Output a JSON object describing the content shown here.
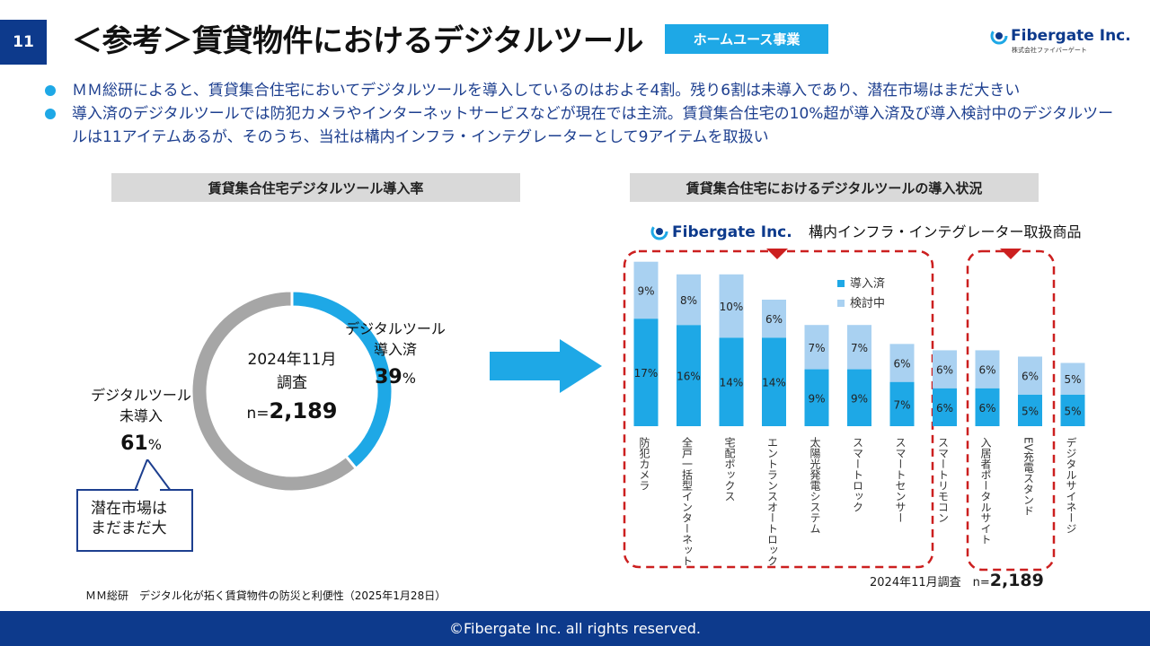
{
  "page_number": "11",
  "title": "＜参考＞賃貸物件におけるデジタルツール",
  "badge": "ホームユース事業",
  "logo": {
    "name": "Fibergate Inc.",
    "sub": "株式会社ファイバーゲート"
  },
  "bullets": [
    "ＭＭ総研によると、賃貸集合住宅においてデジタルツールを導入しているのはおよそ4割。残り6割は未導入であり、潜在市場はまだ大きい",
    "導入済のデジタルツールでは防犯カメラやインターネットサービスなどが現在では主流。賃貸集合住宅の10%超が導入済及び導入検討中のデジタルツールは11アイテムあるが、そのうち、当社は構内インフラ・インテグレーターとして9アイテムを取扱い"
  ],
  "section_left": "賃貸集合住宅デジタルツール導入率",
  "section_right": "賃貸集合住宅におけるデジタルツールの導入状況",
  "callout": [
    "潜在市場は",
    "まだまだ大"
  ],
  "source": "ＭＭ総研　デジタル化が拓く賃貸物件の防災と利便性（2025年1月28日）",
  "survey_right": {
    "text": "2024年11月調査　n=",
    "n": "2,189"
  },
  "footer": "©Fibergate Inc. all rights reserved.",
  "colors": {
    "navy": "#0d3a8c",
    "accent": "#1ea8e6",
    "introduced": "#1ea8e6",
    "considering": "#a9d1f1",
    "not_introduced": "#a6a6a6",
    "dash": "#cc1f1f"
  },
  "chart_data": [
    {
      "type": "pie",
      "subtype": "donut",
      "center": {
        "line1": "2024年11月",
        "line2": "調査",
        "n_prefix": "n=",
        "n_value": "2,189"
      },
      "slices": [
        {
          "label_lines": [
            "デジタルツール",
            "導入済"
          ],
          "value": 39,
          "value_text": "39",
          "unit": "%",
          "color": "#1ea8e6"
        },
        {
          "label_lines": [
            "デジタルツール",
            "未導入"
          ],
          "value": 61,
          "value_text": "61",
          "unit": "%",
          "color": "#a6a6a6"
        }
      ]
    },
    {
      "type": "bar",
      "stacked": true,
      "banner": "構内インフラ・インテグレーター取扱商品",
      "legend_position": "top-right",
      "ylim": [
        0,
        30
      ],
      "categories": [
        "防犯カメラ",
        "全戸一括型インターネット",
        "宅配ボックス",
        "エントランスオートロック",
        "太陽光発電システム",
        "スマートロック",
        "スマートセンサー",
        "スマートリモコン",
        "入居者ポータルサイト",
        "EV充電スタンド",
        "デジタルサイネージ"
      ],
      "series": [
        {
          "name": "導入済",
          "values": [
            17,
            16,
            14,
            14,
            9,
            9,
            7,
            6,
            6,
            5,
            5
          ],
          "labels": [
            "17%",
            "16%",
            "14%",
            "14%",
            "9%",
            "9%",
            "7%",
            "6%",
            "6%",
            "5%",
            "5%"
          ],
          "color": "#1ea8e6"
        },
        {
          "name": "検討中",
          "values": [
            9,
            8,
            10,
            6,
            7,
            7,
            6,
            6,
            6,
            6,
            5
          ],
          "labels": [
            "9%",
            "8%",
            "10%",
            "6%",
            "7%",
            "7%",
            "6%",
            "6%",
            "6%",
            "6%",
            "5%"
          ],
          "color": "#a9d1f1"
        }
      ],
      "handled_groups": [
        [
          0,
          6
        ],
        [
          8,
          9
        ]
      ]
    }
  ]
}
